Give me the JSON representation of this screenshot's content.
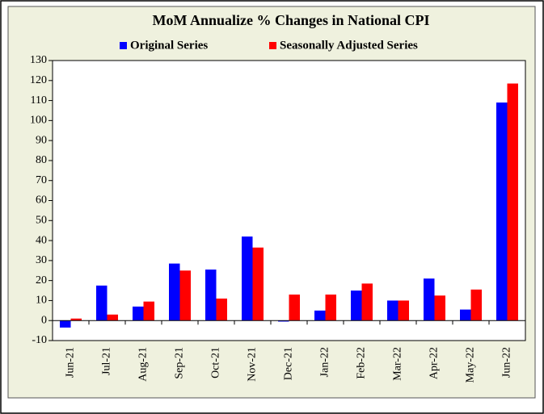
{
  "chart_data": {
    "type": "bar",
    "title": "MoM Annualize % Changes in National CPI",
    "categories": [
      "Jun-21",
      "Jul-21",
      "Aug-21",
      "Sep-21",
      "Oct-21",
      "Nov-21",
      "Dec-21",
      "Jan-22",
      "Feb-22",
      "Mar-22",
      "Apr-22",
      "May-22",
      "Jun-22"
    ],
    "series": [
      {
        "name": "Original Series",
        "color": "#0000ff",
        "values": [
          -3.5,
          17.5,
          7,
          28.5,
          25.5,
          42,
          -0.5,
          5,
          15,
          10,
          21,
          5.5,
          109
        ]
      },
      {
        "name": "Seasonally Adjusted Series",
        "color": "#ff0000",
        "values": [
          1,
          3,
          9.5,
          25,
          11,
          36.5,
          13,
          13,
          18.5,
          10,
          12.5,
          15.5,
          118.5
        ]
      }
    ],
    "ylim": [
      -10,
      130
    ],
    "yticks": [
      -10,
      0,
      10,
      20,
      30,
      40,
      50,
      60,
      70,
      80,
      90,
      100,
      110,
      120,
      130
    ],
    "grid": false
  }
}
